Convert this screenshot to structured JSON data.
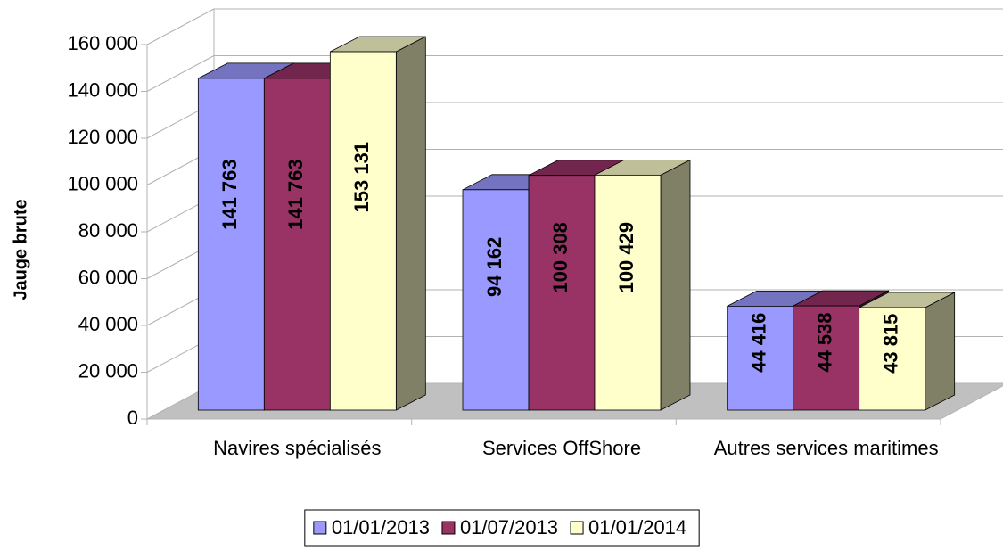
{
  "chart_data": {
    "type": "bar3d",
    "y_label": "Jauge brute",
    "categories": [
      "Navires spécialisés",
      "Services OffShore",
      "Autres services maritimes"
    ],
    "series": [
      {
        "name": "01/01/2013",
        "color": "#9999ff",
        "label_color": "#000000",
        "values": [
          141763,
          94162,
          44416
        ],
        "value_labels": [
          "141 763",
          "94 162",
          "44 416"
        ]
      },
      {
        "name": "01/07/2013",
        "color": "#993366",
        "label_color": "#ffffcc",
        "values": [
          141763,
          100308,
          44538
        ],
        "value_labels": [
          "141 763",
          "100 308",
          "44 538"
        ]
      },
      {
        "name": "01/01/2014",
        "color": "#ffffcc",
        "label_color": "#000000",
        "values": [
          153131,
          100429,
          43815
        ],
        "value_labels": [
          "153 131",
          "100 429",
          "43 815"
        ]
      }
    ],
    "ylim": [
      0,
      160000
    ],
    "yticks": [
      0,
      {
        "value": 20000,
        "label": "20 000"
      },
      {
        "value": 40000,
        "label": "40 000"
      },
      {
        "value": 60000,
        "label": "60 000"
      },
      {
        "value": 80000,
        "label": "80 000"
      },
      {
        "value": 100000,
        "label": "100 000"
      },
      {
        "value": 120000,
        "label": "120 000"
      },
      {
        "value": 140000,
        "label": "140 000"
      },
      {
        "value": 160000,
        "label": "160 000"
      }
    ],
    "grid": true,
    "legend": "bottom"
  }
}
